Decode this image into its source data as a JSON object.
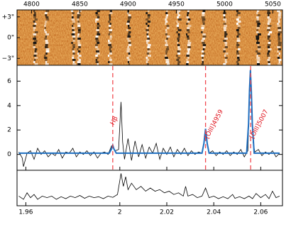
{
  "chart_data": [
    {
      "type": "image",
      "x2lim": [
        4785,
        5060
      ],
      "x2ticks": [
        4800,
        4850,
        4900,
        4950,
        5000,
        5050
      ],
      "ylim": [
        -4,
        4
      ],
      "yticks": [
        {
          "value": 3,
          "label": "+3\""
        },
        {
          "value": 0,
          "label": "0\""
        },
        {
          "value": -3,
          "label": "−3\""
        }
      ]
    },
    {
      "type": "line",
      "ylim": [
        -1.3,
        7.3
      ],
      "yticks": [
        0,
        2,
        4,
        6
      ],
      "series": [
        {
          "color": "#000000",
          "x": [
            1.957,
            1.9585,
            1.959,
            1.9605,
            1.962,
            1.9635,
            1.965,
            1.9665,
            1.968,
            1.9695,
            1.971,
            1.9725,
            1.974,
            1.9755,
            1.977,
            1.9785,
            1.98,
            1.9815,
            1.983,
            1.9845,
            1.986,
            1.9875,
            1.989,
            1.9905,
            1.992,
            1.9935,
            1.995,
            1.9965,
            1.998,
            1.9995,
            2.0005,
            2.0012,
            2.002,
            2.0035,
            2.005,
            2.0065,
            2.008,
            2.0095,
            2.011,
            2.0125,
            2.014,
            2.0155,
            2.017,
            2.0185,
            2.02,
            2.0215,
            2.023,
            2.0245,
            2.026,
            2.0275,
            2.029,
            2.0305,
            2.032,
            2.0335,
            2.035,
            2.0358,
            2.0365,
            2.0372,
            2.038,
            2.0395,
            2.041,
            2.0425,
            2.044,
            2.0455,
            2.047,
            2.0485,
            2.05,
            2.0515,
            2.053,
            2.0545,
            2.0552,
            2.0556,
            2.056,
            2.0567,
            2.0575,
            2.059,
            2.0605,
            2.062,
            2.0635,
            2.065,
            2.0665,
            2.068
          ],
          "values": [
            0.2,
            -0.3,
            -1.0,
            0.1,
            0.3,
            -0.4,
            0.5,
            0.0,
            0.3,
            -0.2,
            0.1,
            -0.1,
            0.4,
            -0.3,
            0.2,
            0.1,
            0.5,
            -0.2,
            0.2,
            0.0,
            0.3,
            -0.1,
            0.2,
            -0.3,
            0.1,
            0.2,
            0.0,
            0.7,
            0.3,
            0.4,
            4.3,
            1.0,
            -0.4,
            1.3,
            -0.5,
            1.1,
            -0.2,
            0.8,
            -0.3,
            0.6,
            0.1,
            0.9,
            -0.4,
            0.5,
            0.0,
            0.6,
            -0.2,
            0.4,
            0.0,
            0.5,
            -0.1,
            0.3,
            0.0,
            0.2,
            0.1,
            0.8,
            2.0,
            0.9,
            0.1,
            0.3,
            -0.1,
            0.2,
            0.0,
            0.3,
            -0.1,
            0.2,
            0.0,
            0.4,
            -0.2,
            0.3,
            4.5,
            7.0,
            5.0,
            1.0,
            0.2,
            0.4,
            -0.1,
            0.2,
            0.0,
            0.3,
            -0.2,
            0.1
          ]
        },
        {
          "color": "#1f6fc0",
          "x": [
            1.957,
            1.9955,
            1.9965,
            1.997,
            1.9975,
            1.9985,
            2.035,
            2.0358,
            2.0365,
            2.0372,
            2.038,
            2.054,
            2.0548,
            2.0552,
            2.0556,
            2.056,
            2.0564,
            2.0572,
            2.068
          ],
          "values": [
            0.1,
            0.1,
            0.45,
            0.75,
            0.45,
            0.1,
            0.1,
            0.9,
            2.1,
            0.9,
            0.1,
            0.1,
            2.5,
            5.2,
            6.9,
            5.2,
            2.5,
            0.1,
            0.1
          ]
        }
      ],
      "annotations": [
        {
          "x": 1.997,
          "text": "Hβ"
        },
        {
          "x": 2.0365,
          "text": "[OIII]4959"
        },
        {
          "x": 2.0557,
          "text": "[OIII]5007"
        }
      ]
    },
    {
      "type": "line",
      "xlim": [
        1.95625,
        2.06925
      ],
      "xticks": [
        1.96,
        2,
        2.02,
        2.04,
        2.06
      ],
      "ylim": [
        0,
        11
      ],
      "series": [
        {
          "color": "#000000",
          "x": [
            1.957,
            1.959,
            1.9605,
            1.962,
            1.9635,
            1.965,
            1.967,
            1.969,
            1.971,
            1.973,
            1.975,
            1.977,
            1.979,
            1.981,
            1.983,
            1.985,
            1.987,
            1.989,
            1.991,
            1.993,
            1.995,
            1.997,
            1.999,
            2.0005,
            2.0015,
            2.0025,
            2.0035,
            2.005,
            2.007,
            2.009,
            2.011,
            2.013,
            2.015,
            2.017,
            2.019,
            2.021,
            2.023,
            2.025,
            2.027,
            2.028,
            2.029,
            2.031,
            2.033,
            2.035,
            2.0365,
            2.038,
            2.04,
            2.042,
            2.044,
            2.046,
            2.048,
            2.049,
            2.051,
            2.053,
            2.055,
            2.0565,
            2.058,
            2.06,
            2.062,
            2.0635,
            2.065,
            2.0665,
            2.068
          ],
          "values": [
            3,
            2,
            4,
            2.5,
            3.5,
            2,
            3,
            2.5,
            3,
            2,
            2.8,
            2.2,
            3,
            2.5,
            3.2,
            2.3,
            3,
            2.5,
            2.8,
            2.2,
            3,
            2.6,
            3.5,
            10,
            6,
            9,
            5,
            7,
            5,
            6,
            4.5,
            5.5,
            4.5,
            5,
            4,
            4.5,
            3.5,
            4,
            3,
            6,
            3,
            3.5,
            2.5,
            3,
            5.5,
            2.5,
            3,
            2.2,
            2.8,
            2.2,
            3.5,
            2.3,
            2.8,
            2.2,
            3,
            2.2,
            3.8,
            2.5,
            3.5,
            2.2,
            4.5,
            2.5,
            3
          ]
        }
      ]
    }
  ]
}
